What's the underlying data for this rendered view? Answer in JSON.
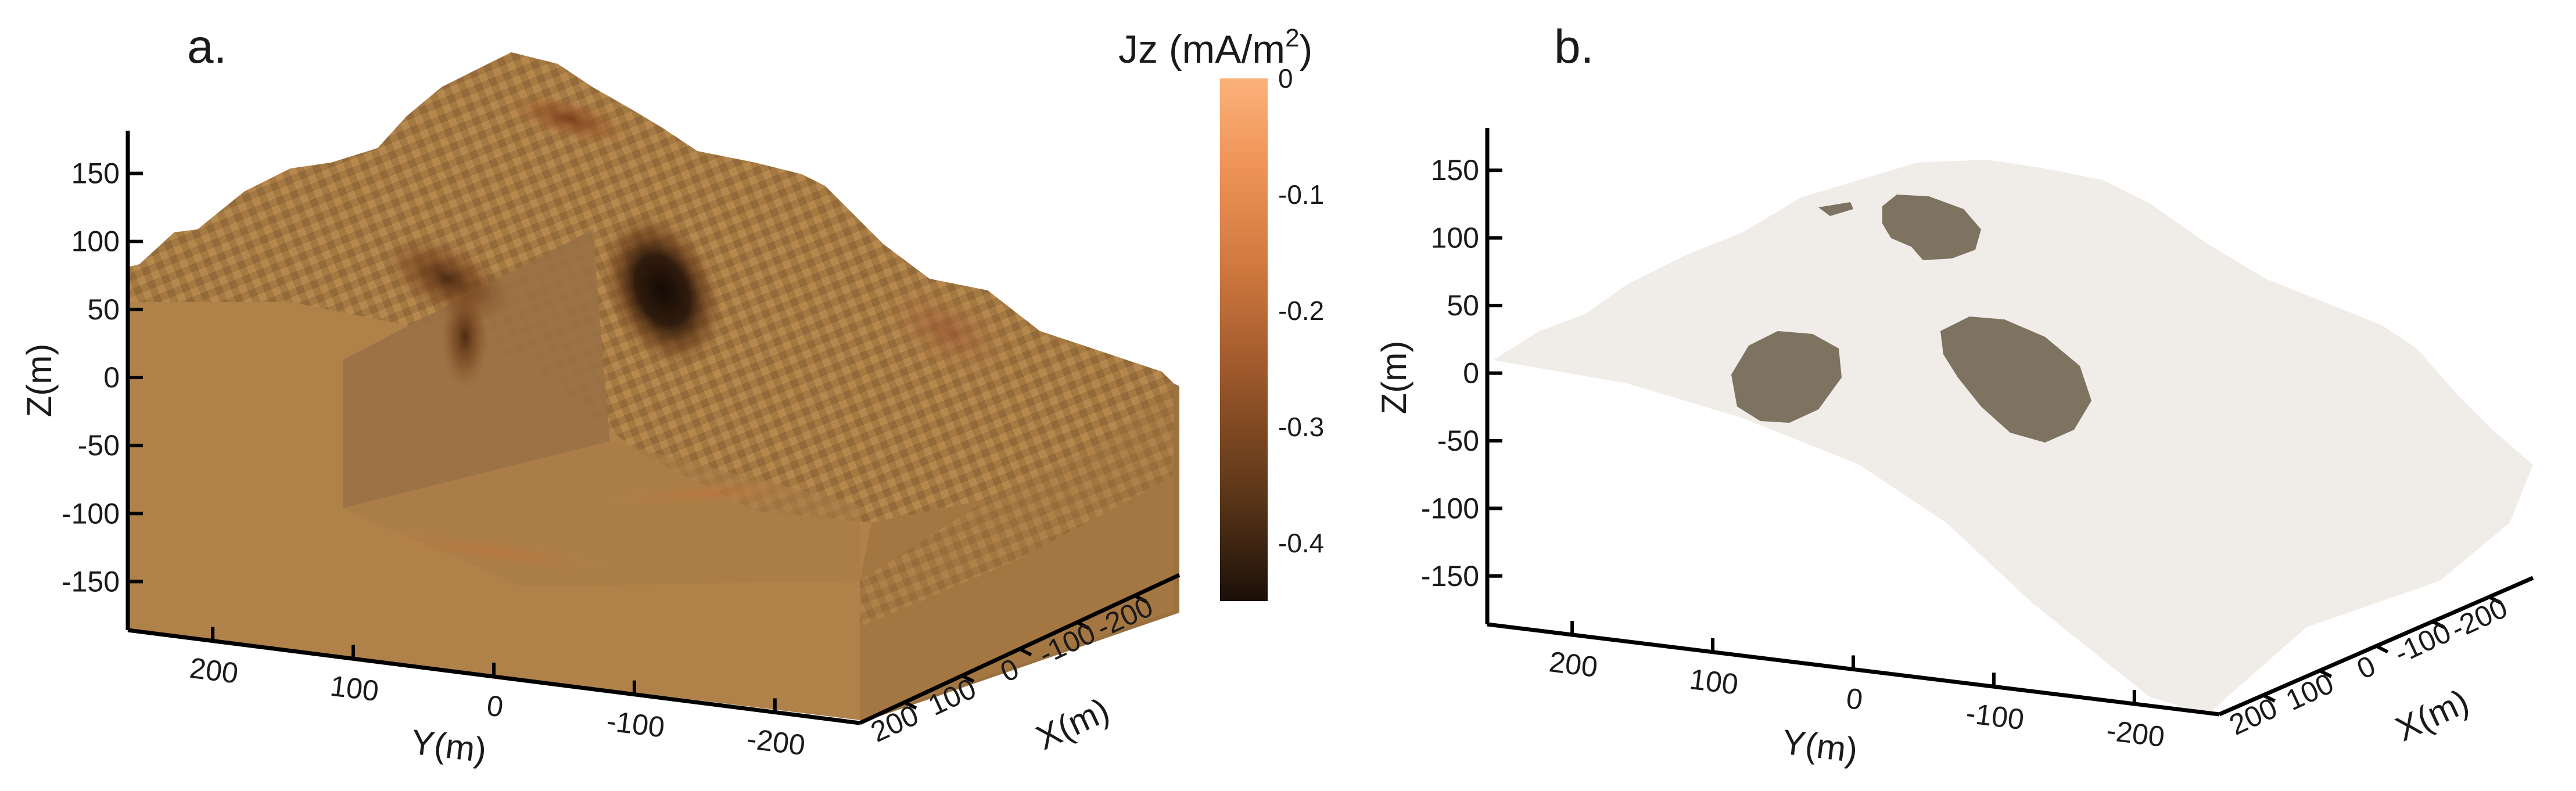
{
  "chart_data": [
    {
      "type": "heatmap",
      "panel_label": "a.",
      "zlabel": "Z(m)",
      "ylabel": "Y(m)",
      "xlabel": "X(m)",
      "z_ticks": [
        "150",
        "100",
        "50",
        "0",
        "-50",
        "-100",
        "-150"
      ],
      "y_ticks": [
        "200",
        "100",
        "0",
        "-100",
        "-200"
      ],
      "x_ticks": [
        "200",
        "100",
        "0",
        "-100",
        "-200"
      ],
      "zlim": [
        -175,
        175
      ],
      "colorbar": {
        "label": "Jz (mA/m",
        "label_sup": "2",
        "label_end": ")",
        "ticks": [
          "0",
          "-0.1",
          "-0.2",
          "-0.3",
          "-0.4"
        ],
        "range": [
          -0.45,
          0
        ],
        "colors": [
          "#fbb27a",
          "#f0965a",
          "#d37a40",
          "#a05a2c",
          "#5b3618",
          "#1a0f08"
        ]
      },
      "block_color": "#b0824a",
      "anomalies": [
        {
          "name": "anomaly-main",
          "jz": -0.42
        },
        {
          "name": "anomaly-west",
          "jz": -0.28
        },
        {
          "name": "anomaly-ridge",
          "jz": -0.2
        },
        {
          "name": "anomaly-east",
          "jz": -0.12
        },
        {
          "name": "anomaly-deep",
          "jz": -0.08
        }
      ]
    },
    {
      "type": "scatter",
      "panel_label": "b.",
      "zlabel": "Z(m)",
      "ylabel": "Y(m)",
      "xlabel": "X(m)",
      "z_ticks": [
        "150",
        "100",
        "50",
        "0",
        "-50",
        "-100",
        "-150"
      ],
      "y_ticks": [
        "200",
        "100",
        "0",
        "-100",
        "-200"
      ],
      "x_ticks": [
        "200",
        "100",
        "0",
        "-100",
        "-200"
      ],
      "zlim": [
        -175,
        175
      ],
      "surface_color": "#efeae6",
      "body_color": "#7e7260",
      "bodies": [
        "body-small-north",
        "body-north",
        "body-west",
        "body-east"
      ]
    }
  ]
}
